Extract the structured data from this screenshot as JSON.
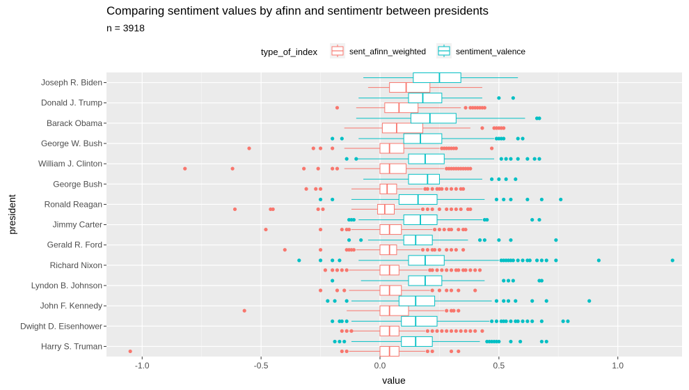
{
  "chart_data": {
    "type": "boxplot",
    "orientation": "horizontal",
    "title": "Comparing sentiment values by afinn and sentimentr between presidents",
    "subtitle": "n = 3918",
    "xlabel": "value",
    "ylabel": "president",
    "xlim": [
      -1.15,
      1.27
    ],
    "x_ticks": [
      -1.0,
      -0.5,
      0.0,
      0.5,
      1.0
    ],
    "x_tick_labels": [
      "-1.0",
      "-0.5",
      "0.0",
      "0.5",
      "1.0"
    ],
    "legend": {
      "title": "type_of_index",
      "position": "top",
      "entries": [
        {
          "name": "sent_afinn_weighted",
          "color": "#F8766D"
        },
        {
          "name": "sentiment_valence",
          "color": "#00BFC4"
        }
      ]
    },
    "categories": [
      "Joseph R. Biden",
      "Donald J. Trump",
      "Barack Obama",
      "George W. Bush",
      "William J. Clinton",
      "George Bush",
      "Ronald Reagan",
      "Jimmy Carter",
      "Gerald R. Ford",
      "Richard Nixon",
      "Lyndon B. Johnson",
      "John F. Kennedy",
      "Dwight D. Eisenhower",
      "Harry S. Truman"
    ],
    "series": [
      {
        "name": "sent_afinn_weighted",
        "color": "#F8766D",
        "boxes": [
          {
            "wlo": -0.05,
            "q1": 0.04,
            "med": 0.11,
            "q3": 0.21,
            "whi": 0.43,
            "outliers": []
          },
          {
            "wlo": -0.1,
            "q1": 0.02,
            "med": 0.08,
            "q3": 0.16,
            "whi": 0.34,
            "outliers": [
              -0.18,
              0.36,
              0.38,
              0.39,
              0.4,
              0.41,
              0.42,
              0.43,
              0.44
            ]
          },
          {
            "wlo": -0.15,
            "q1": 0.01,
            "med": 0.07,
            "q3": 0.18,
            "whi": 0.38,
            "outliers": [
              0.43,
              0.48,
              0.49,
              0.5,
              0.51,
              0.52
            ]
          },
          {
            "wlo": -0.15,
            "q1": 0.0,
            "med": 0.04,
            "q3": 0.1,
            "whi": 0.25,
            "outliers": [
              -0.55,
              -0.28,
              -0.25,
              -0.2,
              0.26,
              0.27,
              0.28,
              0.29,
              0.3,
              0.31,
              0.32,
              0.47
            ]
          },
          {
            "wlo": -0.15,
            "q1": 0.0,
            "med": 0.04,
            "q3": 0.11,
            "whi": 0.27,
            "outliers": [
              -0.82,
              -0.62,
              -0.32,
              -0.26,
              -0.2,
              -0.18,
              0.28,
              0.29,
              0.3,
              0.31,
              0.32,
              0.33,
              0.34,
              0.35,
              0.36,
              0.37,
              0.38
            ]
          },
          {
            "wlo": -0.12,
            "q1": 0.0,
            "med": 0.03,
            "q3": 0.07,
            "whi": 0.18,
            "outliers": [
              -0.31,
              -0.27,
              -0.25,
              0.19,
              0.2,
              0.22,
              0.24,
              0.25,
              0.26,
              0.28,
              0.3,
              0.32,
              0.34,
              0.35
            ]
          },
          {
            "wlo": -0.12,
            "q1": -0.01,
            "med": 0.02,
            "q3": 0.06,
            "whi": 0.17,
            "outliers": [
              -0.61,
              -0.46,
              -0.45,
              -0.26,
              -0.24,
              0.18,
              0.2,
              0.22,
              0.25,
              0.28,
              0.3,
              0.32,
              0.34,
              0.37,
              0.38
            ]
          },
          {
            "wlo": -0.12,
            "q1": 0.0,
            "med": 0.04,
            "q3": 0.09,
            "whi": 0.22,
            "outliers": [
              -0.48,
              -0.25,
              -0.16,
              -0.14,
              -0.13,
              0.23,
              0.25,
              0.27,
              0.29,
              0.3,
              0.33,
              0.35,
              0.36
            ]
          },
          {
            "wlo": -0.1,
            "q1": 0.0,
            "med": 0.04,
            "q3": 0.07,
            "whi": 0.17,
            "outliers": [
              -0.4,
              -0.25,
              -0.14,
              -0.13,
              -0.12,
              -0.11,
              0.18,
              0.2,
              0.22,
              0.23,
              0.25,
              0.28,
              0.3,
              0.32,
              0.35
            ]
          },
          {
            "wlo": -0.13,
            "q1": 0.0,
            "med": 0.04,
            "q3": 0.08,
            "whi": 0.2,
            "outliers": [
              -0.23,
              -0.2,
              -0.18,
              -0.16,
              -0.14,
              0.21,
              0.22,
              0.24,
              0.26,
              0.28,
              0.3,
              0.32,
              0.33,
              0.35,
              0.36,
              0.38,
              0.4,
              0.42
            ]
          },
          {
            "wlo": -0.13,
            "q1": 0.0,
            "med": 0.04,
            "q3": 0.09,
            "whi": 0.21,
            "outliers": [
              -0.25,
              -0.18,
              -0.15,
              0.22,
              0.25,
              0.28,
              0.3,
              0.33,
              0.4
            ]
          },
          {
            "wlo": -0.14,
            "q1": 0.0,
            "med": 0.04,
            "q3": 0.12,
            "whi": 0.27,
            "outliers": [
              -0.57,
              0.28,
              0.3,
              0.31,
              0.33
            ]
          },
          {
            "wlo": -0.13,
            "q1": 0.0,
            "med": 0.04,
            "q3": 0.08,
            "whi": 0.19,
            "outliers": [
              -0.16,
              -0.14,
              -0.12,
              0.2,
              0.22,
              0.24,
              0.26,
              0.28,
              0.3,
              0.32,
              0.34,
              0.36,
              0.38,
              0.4,
              0.43
            ]
          },
          {
            "wlo": -0.13,
            "q1": 0.0,
            "med": 0.04,
            "q3": 0.08,
            "whi": 0.19,
            "outliers": [
              -1.05,
              -0.16,
              -0.14,
              0.2,
              0.22,
              0.3,
              0.33
            ]
          }
        ]
      },
      {
        "name": "sentiment_valence",
        "color": "#00BFC4",
        "boxes": [
          {
            "wlo": -0.07,
            "q1": 0.14,
            "med": 0.25,
            "q3": 0.34,
            "whi": 0.58,
            "outliers": []
          },
          {
            "wlo": -0.09,
            "q1": 0.12,
            "med": 0.18,
            "q3": 0.26,
            "whi": 0.43,
            "outliers": [
              0.5,
              0.56
            ]
          },
          {
            "wlo": -0.1,
            "q1": 0.13,
            "med": 0.21,
            "q3": 0.32,
            "whi": 0.61,
            "outliers": [
              0.66,
              0.67
            ]
          },
          {
            "wlo": -0.09,
            "q1": 0.1,
            "med": 0.17,
            "q3": 0.26,
            "whi": 0.48,
            "outliers": [
              -0.2,
              -0.16,
              0.49,
              0.5,
              0.51,
              0.52,
              0.58,
              0.6
            ]
          },
          {
            "wlo": -0.1,
            "q1": 0.12,
            "med": 0.19,
            "q3": 0.27,
            "whi": 0.48,
            "outliers": [
              -0.14,
              -0.1,
              0.51,
              0.53,
              0.55,
              0.58,
              0.62,
              0.65,
              0.67
            ]
          },
          {
            "wlo": -0.07,
            "q1": 0.12,
            "med": 0.2,
            "q3": 0.25,
            "whi": 0.43,
            "outliers": [
              0.47,
              0.5,
              0.53,
              0.57
            ]
          },
          {
            "wlo": -0.12,
            "q1": 0.08,
            "med": 0.16,
            "q3": 0.24,
            "whi": 0.44,
            "outliers": [
              -0.25,
              -0.2,
              0.49,
              0.52,
              0.55,
              0.62,
              0.68,
              0.76
            ]
          },
          {
            "wlo": -0.09,
            "q1": 0.1,
            "med": 0.17,
            "q3": 0.24,
            "whi": 0.43,
            "outliers": [
              -0.13,
              -0.12,
              -0.11,
              0.44,
              0.45,
              0.64,
              0.67
            ]
          },
          {
            "wlo": -0.05,
            "q1": 0.1,
            "med": 0.15,
            "q3": 0.22,
            "whi": 0.37,
            "outliers": [
              -0.13,
              -0.08,
              0.42,
              0.44,
              0.5,
              0.55,
              0.74
            ]
          },
          {
            "wlo": -0.09,
            "q1": 0.12,
            "med": 0.19,
            "q3": 0.27,
            "whi": 0.5,
            "outliers": [
              -0.34,
              -0.25,
              -0.2,
              -0.17,
              0.51,
              0.52,
              0.53,
              0.54,
              0.55,
              0.56,
              0.58,
              0.6,
              0.62,
              0.63,
              0.66,
              0.68,
              0.7,
              0.74,
              0.92,
              1.23
            ]
          },
          {
            "wlo": -0.08,
            "q1": 0.12,
            "med": 0.19,
            "q3": 0.26,
            "whi": 0.44,
            "outliers": [
              -0.2,
              0.52,
              0.54,
              0.56,
              0.67,
              0.68
            ]
          },
          {
            "wlo": -0.12,
            "q1": 0.08,
            "med": 0.15,
            "q3": 0.23,
            "whi": 0.47,
            "outliers": [
              -0.22,
              -0.19,
              -0.14,
              0.49,
              0.52,
              0.54,
              0.57,
              0.64,
              0.7,
              0.88
            ]
          },
          {
            "wlo": -0.12,
            "q1": 0.09,
            "med": 0.15,
            "q3": 0.24,
            "whi": 0.46,
            "outliers": [
              -0.2,
              -0.17,
              -0.16,
              -0.14,
              0.47,
              0.49,
              0.51,
              0.52,
              0.53,
              0.55,
              0.57,
              0.58,
              0.6,
              0.62,
              0.64,
              0.68,
              0.77,
              0.79
            ]
          },
          {
            "wlo": -0.12,
            "q1": 0.09,
            "med": 0.15,
            "q3": 0.22,
            "whi": 0.42,
            "outliers": [
              -0.19,
              -0.17,
              -0.15,
              0.45,
              0.46,
              0.47,
              0.48,
              0.49,
              0.5,
              0.55,
              0.59,
              0.68,
              0.7
            ]
          }
        ]
      }
    ]
  }
}
